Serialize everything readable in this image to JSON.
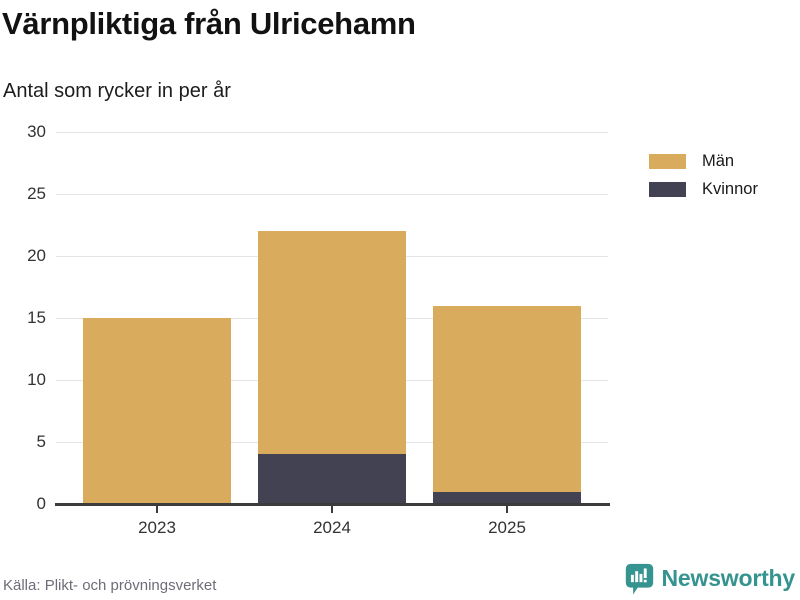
{
  "header": {
    "title": "Värnpliktiga från Ulricehamn",
    "subtitle": "Antal som rycker in per år"
  },
  "chart_data": {
    "type": "bar",
    "stacked": true,
    "categories": [
      "2023",
      "2024",
      "2025"
    ],
    "series": [
      {
        "name": "Män",
        "color": "#d9ab5c",
        "values": [
          15,
          18,
          15
        ]
      },
      {
        "name": "Kvinnor",
        "color": "#434253",
        "values": [
          0,
          4,
          1
        ]
      }
    ],
    "totals": [
      15,
      22,
      16
    ],
    "stack_order_bottom_to_top": [
      "Kvinnor",
      "Män"
    ],
    "title": "Värnpliktiga från Ulricehamn",
    "subtitle": "Antal som rycker in per år",
    "xlabel": "",
    "ylabel": "",
    "ylim": [
      0,
      30
    ],
    "yticks": [
      0,
      5,
      10,
      15,
      20,
      25,
      30
    ],
    "grid": "horizontal",
    "legend_position": "top-right"
  },
  "footer": {
    "source": "Källa: Plikt- och prövningsverket",
    "brand": "Newsworthy"
  },
  "colors": {
    "men": "#d9ab5c",
    "women": "#434253",
    "axis": "#3b3b3b",
    "grid": "#e4e4e4",
    "brand_teal": "#35948f",
    "title_text": "#121212",
    "source_text": "#6d6d77"
  }
}
